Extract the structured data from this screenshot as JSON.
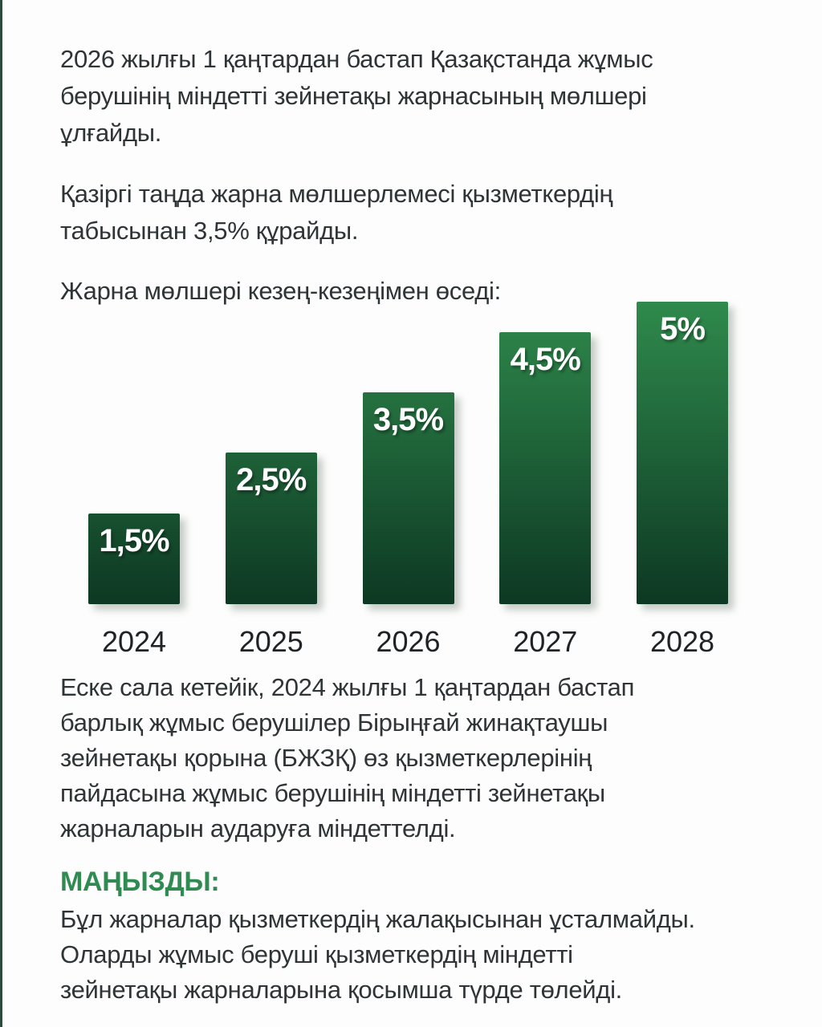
{
  "colors": {
    "background": "#fcfdfc",
    "left_stripe": "#2c4b3e",
    "text": "#2f3437",
    "accent_green": "#2f8b51",
    "bar_gradient_top": "#2f8a4c",
    "bar_gradient_bottom": "#0d3823",
    "bar_value_text": "#ffffff",
    "year_label_text": "#1f2326"
  },
  "intro": {
    "paragraph1": "2026 жылғы 1 қаңтардан бастап Қазақстанда жұмыс\nберушінің міндетті зейнетақы жарнасының мөлшері\nұлғайды.",
    "paragraph2": "Қазіргі таңда жарна мөлшерлемесі қызметкердің\nтабысынан 3,5% құрайды."
  },
  "chart_data": {
    "type": "bar",
    "title": "Жарна мөлшері кезең-кезеңімен өседі:",
    "categories": [
      "2024",
      "2025",
      "2026",
      "2027",
      "2028"
    ],
    "values": [
      1.5,
      2.5,
      3.5,
      4.5,
      5
    ],
    "value_labels": [
      "1,5%",
      "2,5%",
      "3,5%",
      "4,5%",
      "5%"
    ],
    "xlabel": "",
    "ylabel": "",
    "ylim": [
      0,
      5
    ],
    "unit": "%",
    "grid": false,
    "legend": false,
    "value_label_position": "inside-top",
    "category_label_position": "below-bar"
  },
  "body_text": {
    "paragraph3": "Еске сала кетейік, 2024 жылғы 1 қаңтардан бастап\nбарлық жұмыс берушілер Бірыңғай жинақтаушы\nзейнетақы қорына (БЖЗҚ) өз қызметкерлерінің\nпайдасына жұмыс берушінің міндетті зейнетақы\nжарналарын аударуға міндеттелді.",
    "important_heading": "МАҢЫЗДЫ:",
    "important_text": "Бұл жарналар қызметкердің жалақысынан ұсталмайды.\nОларды жұмыс беруші қызметкердің міндетті\nзейнетақы жарналарына қосымша түрде төлейді."
  }
}
